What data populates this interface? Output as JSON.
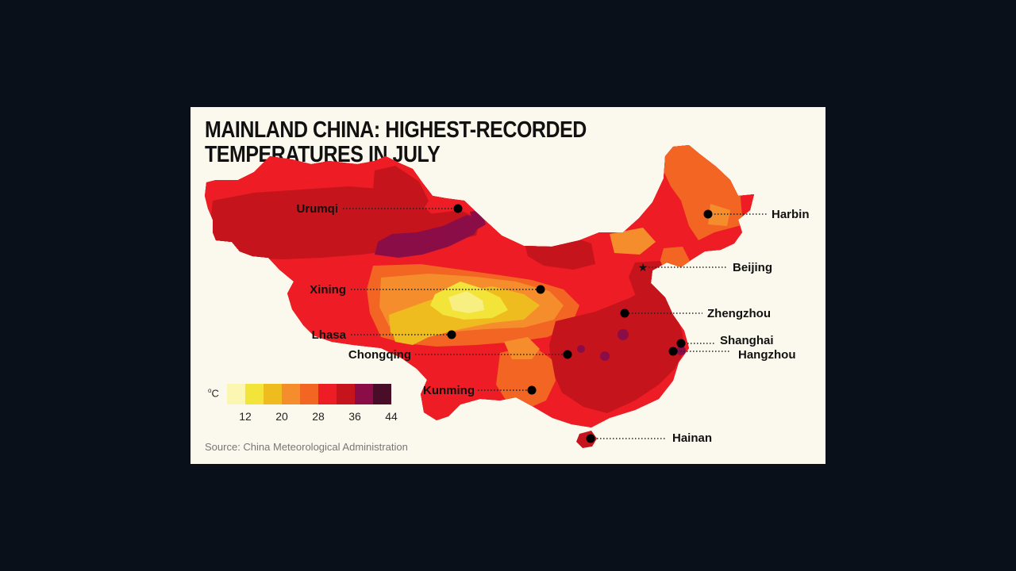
{
  "title": {
    "line1": "MAINLAND CHINA: HIGHEST-RECORDED",
    "line2": "TEMPERATURES IN JULY"
  },
  "legend": {
    "unit": "C",
    "unit_degree": "o",
    "colors": [
      "#fbf7b3",
      "#f3e43a",
      "#efbc1f",
      "#f68d2d",
      "#f26523",
      "#ee1c24",
      "#c5141b",
      "#8b0d48",
      "#4a0d28"
    ],
    "tick_labels": [
      "12",
      "20",
      "28",
      "36",
      "44"
    ]
  },
  "cities": [
    {
      "name": "Urumqi",
      "marker": "dot"
    },
    {
      "name": "Harbin",
      "marker": "dot"
    },
    {
      "name": "Beijing",
      "marker": "star"
    },
    {
      "name": "Xining",
      "marker": "dot"
    },
    {
      "name": "Zhengzhou",
      "marker": "dot"
    },
    {
      "name": "Lhasa",
      "marker": "dot"
    },
    {
      "name": "Shanghai",
      "marker": "dot"
    },
    {
      "name": "Chongqing",
      "marker": "dot"
    },
    {
      "name": "Hangzhou",
      "marker": "dot"
    },
    {
      "name": "Kunming",
      "marker": "dot"
    },
    {
      "name": "Hainan",
      "marker": "dot"
    }
  ],
  "source": "Source: China Meteorological Administration"
}
